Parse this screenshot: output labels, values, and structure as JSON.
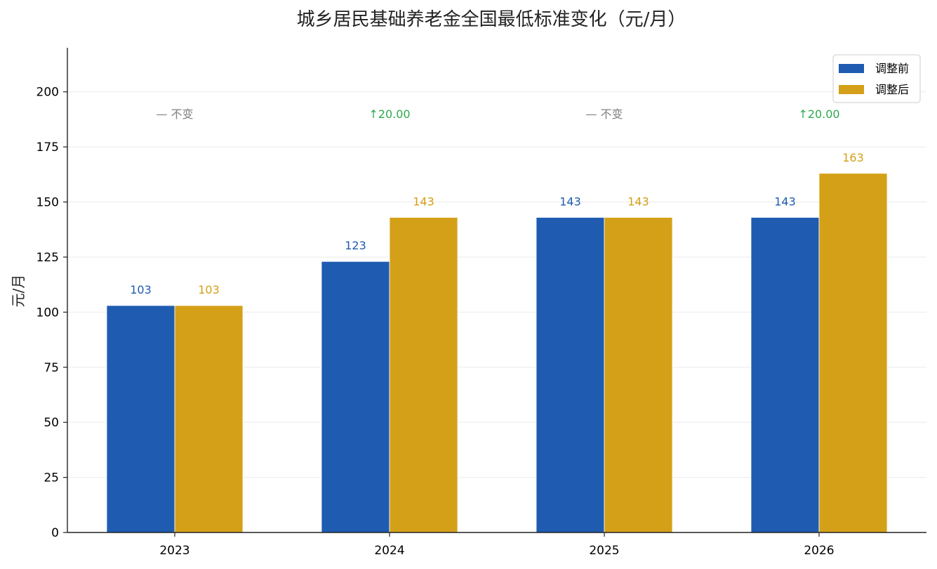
{
  "chart_data": {
    "type": "bar",
    "title": "城乡居民基础养老金全国最低标准变化（元/月）",
    "ylabel": "元/月",
    "xlabel": "",
    "ylim": [
      0,
      220
    ],
    "yticks": [
      0,
      25,
      50,
      75,
      100,
      125,
      150,
      175,
      200
    ],
    "categories": [
      "2023",
      "2024",
      "2025",
      "2026"
    ],
    "series": [
      {
        "name": "调整前",
        "color": "#1f5bb1",
        "values": [
          103,
          123,
          143,
          143
        ],
        "labels": [
          "103",
          "123",
          "143",
          "143"
        ]
      },
      {
        "name": "调整后",
        "color": "#d4a017",
        "values": [
          103,
          143,
          143,
          163
        ],
        "labels": [
          "103",
          "143",
          "143",
          "163"
        ]
      }
    ],
    "changes": [
      {
        "text": "— 不变",
        "color": "#808080"
      },
      {
        "text": "↑20.00",
        "color": "#2eaa4f"
      },
      {
        "text": "— 不变",
        "color": "#808080"
      },
      {
        "text": "↑20.00",
        "color": "#2eaa4f"
      }
    ],
    "legend_position": "top-right",
    "grid": "horizontal"
  }
}
